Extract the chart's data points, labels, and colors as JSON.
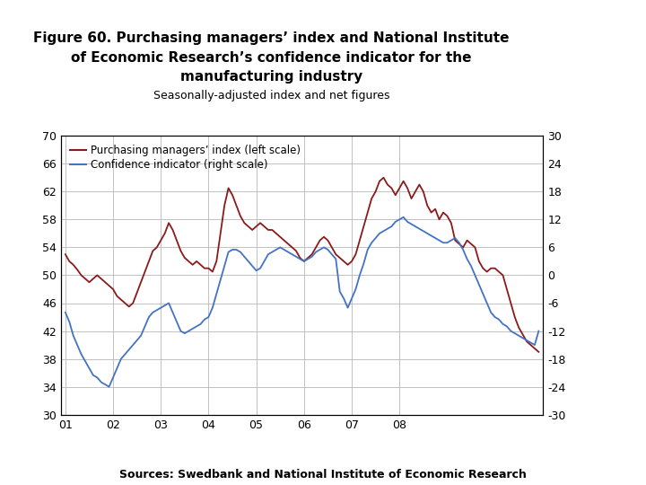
{
  "title": "Figure 60. Purchasing managers’ index and National Institute\n   of Economic Research’s confidence indicator for the\n          manufacturing industry",
  "subtitle": "Seasonally-adjusted index and net figures",
  "source": "Sources: Swedbank and National Institute of Economic Research",
  "pmi_label": "Purchasing managers’ index (left scale)",
  "conf_label": "Confidence indicator (right scale)",
  "pmi_color": "#8B1A1A",
  "conf_color": "#4472C4",
  "left_ylim": [
    30,
    70
  ],
  "right_ylim": [
    -30,
    30
  ],
  "left_yticks": [
    30,
    34,
    38,
    42,
    46,
    50,
    54,
    58,
    62,
    66,
    70
  ],
  "right_yticks": [
    -30,
    -24,
    -18,
    -12,
    -6,
    0,
    6,
    12,
    18,
    24,
    30
  ],
  "xtick_labels": [
    "01",
    "02",
    "03",
    "04",
    "05",
    "06",
    "07",
    "08"
  ],
  "background_color": "#ffffff",
  "grid_color": "#b8b8b8",
  "footer_bar_color": "#1a3a8c",
  "pmi_data": [
    53.0,
    52.0,
    51.5,
    50.8,
    50.0,
    49.5,
    49.0,
    49.5,
    50.0,
    49.5,
    49.0,
    48.5,
    48.0,
    47.0,
    46.5,
    46.0,
    45.5,
    46.0,
    47.5,
    49.0,
    50.5,
    52.0,
    53.5,
    54.0,
    55.0,
    56.0,
    57.5,
    56.5,
    55.0,
    53.5,
    52.5,
    52.0,
    51.5,
    52.0,
    51.5,
    51.0,
    51.0,
    50.5,
    52.0,
    56.0,
    60.0,
    62.5,
    61.5,
    60.0,
    58.5,
    57.5,
    57.0,
    56.5,
    57.0,
    57.5,
    57.0,
    56.5,
    56.5,
    56.0,
    55.5,
    55.0,
    54.5,
    54.0,
    53.5,
    52.5,
    52.0,
    52.5,
    53.0,
    54.0,
    55.0,
    55.5,
    55.0,
    54.0,
    53.0,
    52.5,
    52.0,
    51.5,
    52.0,
    53.0,
    55.0,
    57.0,
    59.0,
    61.0,
    62.0,
    63.5,
    64.0,
    63.0,
    62.5,
    61.5,
    62.5,
    63.5,
    62.5,
    61.0,
    62.0,
    63.0,
    62.0,
    60.0,
    59.0,
    59.5,
    58.0,
    59.0,
    58.5,
    57.5,
    55.0,
    54.5,
    54.0,
    55.0,
    54.5,
    54.0,
    52.0,
    51.0,
    50.5,
    51.0,
    51.0,
    50.5,
    50.0,
    48.0,
    46.0,
    44.0,
    42.5,
    41.5,
    40.5,
    40.0,
    39.5,
    39.0
  ],
  "conf_data": [
    -8.0,
    -10.0,
    -13.0,
    -15.0,
    -17.0,
    -18.5,
    -20.0,
    -21.5,
    -22.0,
    -23.0,
    -23.5,
    -24.0,
    -22.0,
    -20.0,
    -18.0,
    -17.0,
    -16.0,
    -15.0,
    -14.0,
    -13.0,
    -11.0,
    -9.0,
    -8.0,
    -7.5,
    -7.0,
    -6.5,
    -6.0,
    -8.0,
    -10.0,
    -12.0,
    -12.5,
    -12.0,
    -11.5,
    -11.0,
    -10.5,
    -9.5,
    -9.0,
    -7.0,
    -4.0,
    -1.0,
    2.0,
    5.0,
    5.5,
    5.5,
    5.0,
    4.0,
    3.0,
    2.0,
    1.0,
    1.5,
    3.0,
    4.5,
    5.0,
    5.5,
    6.0,
    5.5,
    5.0,
    4.5,
    4.0,
    3.5,
    3.0,
    3.5,
    4.0,
    5.0,
    5.5,
    6.0,
    5.5,
    4.5,
    3.5,
    -3.5,
    -5.0,
    -7.0,
    -5.0,
    -3.0,
    0.0,
    2.5,
    5.5,
    7.0,
    8.0,
    9.0,
    9.5,
    10.0,
    10.5,
    11.5,
    12.0,
    12.5,
    11.5,
    11.0,
    10.5,
    10.0,
    9.5,
    9.0,
    8.5,
    8.0,
    7.5,
    7.0,
    7.0,
    7.5,
    8.0,
    7.0,
    5.5,
    3.5,
    2.0,
    0.0,
    -2.0,
    -4.0,
    -6.0,
    -8.0,
    -9.0,
    -9.5,
    -10.5,
    -11.0,
    -12.0,
    -12.5,
    -13.0,
    -13.5,
    -14.0,
    -14.5,
    -15.0,
    -12.0
  ]
}
